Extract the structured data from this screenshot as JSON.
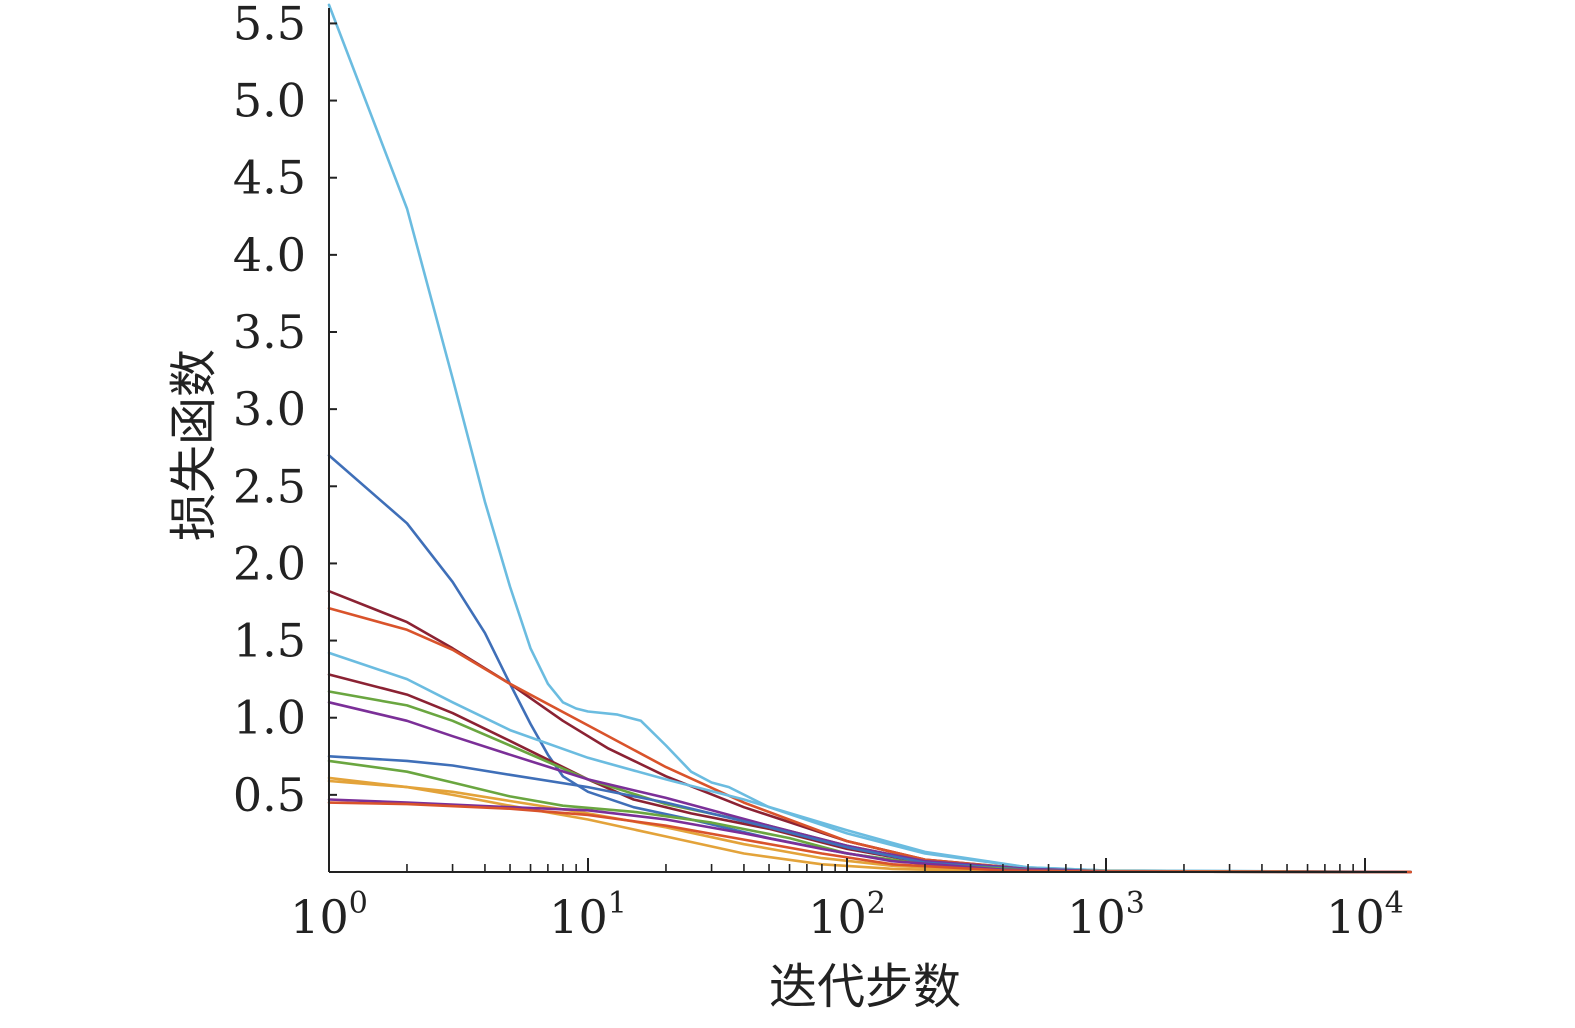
{
  "chart_data": {
    "type": "line",
    "title": "",
    "xlabel": "迭代步数",
    "ylabel": "损失函数",
    "x_scale": "log",
    "xlim": [
      1,
      15000
    ],
    "ylim": [
      0,
      5.6
    ],
    "grid": false,
    "legend": "none",
    "x_ticks": [
      {
        "value": 1,
        "base": "10",
        "exp": "0"
      },
      {
        "value": 10,
        "base": "10",
        "exp": "1"
      },
      {
        "value": 100,
        "base": "10",
        "exp": "2"
      },
      {
        "value": 1000,
        "base": "10",
        "exp": "3"
      },
      {
        "value": 10000,
        "base": "10",
        "exp": "4"
      }
    ],
    "y_ticks": [
      {
        "value": 0.5,
        "label": "0.5"
      },
      {
        "value": 1.0,
        "label": "1.0"
      },
      {
        "value": 1.5,
        "label": "1.5"
      },
      {
        "value": 2.0,
        "label": "2.0"
      },
      {
        "value": 2.5,
        "label": "2.5"
      },
      {
        "value": 3.0,
        "label": "3.0"
      },
      {
        "value": 3.5,
        "label": "3.5"
      },
      {
        "value": 4.0,
        "label": "4.0"
      },
      {
        "value": 4.5,
        "label": "4.5"
      },
      {
        "value": 5.0,
        "label": "5.0"
      },
      {
        "value": 5.5,
        "label": "5.5"
      }
    ],
    "series": [
      {
        "color": "#6bbce0",
        "points": [
          [
            1,
            5.62
          ],
          [
            2,
            4.3
          ],
          [
            3,
            3.2
          ],
          [
            4,
            2.4
          ],
          [
            5,
            1.85
          ],
          [
            6,
            1.45
          ],
          [
            7,
            1.22
          ],
          [
            8,
            1.1
          ],
          [
            9,
            1.06
          ],
          [
            10,
            1.04
          ],
          [
            13,
            1.02
          ],
          [
            16,
            0.98
          ],
          [
            20,
            0.82
          ],
          [
            25,
            0.65
          ],
          [
            30,
            0.58
          ],
          [
            35,
            0.55
          ],
          [
            50,
            0.42
          ],
          [
            100,
            0.25
          ],
          [
            200,
            0.12
          ],
          [
            500,
            0.03
          ],
          [
            1000,
            0.01
          ],
          [
            15000,
            0.0
          ]
        ]
      },
      {
        "color": "#3f6fb8",
        "points": [
          [
            1,
            2.7
          ],
          [
            2,
            2.26
          ],
          [
            3,
            1.88
          ],
          [
            4,
            1.55
          ],
          [
            5,
            1.22
          ],
          [
            6,
            0.96
          ],
          [
            7,
            0.76
          ],
          [
            8,
            0.62
          ],
          [
            10,
            0.52
          ],
          [
            15,
            0.42
          ],
          [
            25,
            0.34
          ],
          [
            50,
            0.22
          ],
          [
            100,
            0.12
          ],
          [
            200,
            0.05
          ],
          [
            400,
            0.015
          ],
          [
            1000,
            0.003
          ],
          [
            15000,
            0.0
          ]
        ]
      },
      {
        "color": "#8b2233",
        "points": [
          [
            1,
            1.82
          ],
          [
            2,
            1.62
          ],
          [
            3,
            1.45
          ],
          [
            5,
            1.22
          ],
          [
            8,
            0.98
          ],
          [
            12,
            0.8
          ],
          [
            20,
            0.62
          ],
          [
            40,
            0.42
          ],
          [
            100,
            0.2
          ],
          [
            200,
            0.08
          ],
          [
            500,
            0.02
          ],
          [
            1000,
            0.005
          ],
          [
            15000,
            0.0
          ]
        ]
      },
      {
        "color": "#d9532b",
        "points": [
          [
            1,
            1.71
          ],
          [
            2,
            1.57
          ],
          [
            3,
            1.44
          ],
          [
            5,
            1.22
          ],
          [
            10,
            0.95
          ],
          [
            20,
            0.68
          ],
          [
            40,
            0.45
          ],
          [
            100,
            0.2
          ],
          [
            200,
            0.08
          ],
          [
            500,
            0.02
          ],
          [
            1000,
            0.005
          ],
          [
            15000,
            0.0
          ]
        ]
      },
      {
        "color": "#6bbce0",
        "points": [
          [
            1,
            1.42
          ],
          [
            2,
            1.25
          ],
          [
            3,
            1.1
          ],
          [
            5,
            0.92
          ],
          [
            10,
            0.74
          ],
          [
            20,
            0.6
          ],
          [
            40,
            0.47
          ],
          [
            100,
            0.27
          ],
          [
            200,
            0.13
          ],
          [
            500,
            0.03
          ],
          [
            1000,
            0.01
          ],
          [
            15000,
            0.0
          ]
        ]
      },
      {
        "color": "#8b2233",
        "points": [
          [
            1,
            1.28
          ],
          [
            2,
            1.15
          ],
          [
            3,
            1.03
          ],
          [
            5,
            0.85
          ],
          [
            10,
            0.6
          ],
          [
            15,
            0.47
          ],
          [
            25,
            0.38
          ],
          [
            50,
            0.28
          ],
          [
            100,
            0.15
          ],
          [
            200,
            0.06
          ],
          [
            500,
            0.015
          ],
          [
            1000,
            0.004
          ],
          [
            15000,
            0.0
          ]
        ]
      },
      {
        "color": "#6aa640",
        "points": [
          [
            1,
            1.17
          ],
          [
            2,
            1.08
          ],
          [
            3,
            0.98
          ],
          [
            5,
            0.82
          ],
          [
            10,
            0.6
          ],
          [
            20,
            0.44
          ],
          [
            50,
            0.3
          ],
          [
            100,
            0.17
          ],
          [
            200,
            0.07
          ],
          [
            500,
            0.02
          ],
          [
            1000,
            0.005
          ],
          [
            15000,
            0.0
          ]
        ]
      },
      {
        "color": "#7b2f98",
        "points": [
          [
            1,
            1.1
          ],
          [
            2,
            0.98
          ],
          [
            3,
            0.88
          ],
          [
            5,
            0.76
          ],
          [
            10,
            0.6
          ],
          [
            20,
            0.48
          ],
          [
            50,
            0.3
          ],
          [
            100,
            0.17
          ],
          [
            200,
            0.07
          ],
          [
            500,
            0.02
          ],
          [
            1000,
            0.005
          ],
          [
            15000,
            0.0
          ]
        ]
      },
      {
        "color": "#3f6fb8",
        "points": [
          [
            1,
            0.75
          ],
          [
            2,
            0.72
          ],
          [
            3,
            0.69
          ],
          [
            5,
            0.63
          ],
          [
            10,
            0.55
          ],
          [
            20,
            0.45
          ],
          [
            50,
            0.29
          ],
          [
            100,
            0.16
          ],
          [
            200,
            0.06
          ],
          [
            500,
            0.015
          ],
          [
            1000,
            0.004
          ],
          [
            15000,
            0.0
          ]
        ]
      },
      {
        "color": "#6aa640",
        "points": [
          [
            1,
            0.72
          ],
          [
            2,
            0.65
          ],
          [
            3,
            0.58
          ],
          [
            5,
            0.49
          ],
          [
            8,
            0.43
          ],
          [
            15,
            0.39
          ],
          [
            30,
            0.32
          ],
          [
            60,
            0.22
          ],
          [
            100,
            0.12
          ],
          [
            200,
            0.05
          ],
          [
            500,
            0.012
          ],
          [
            1000,
            0.003
          ],
          [
            15000,
            0.0
          ]
        ]
      },
      {
        "color": "#e3a33a",
        "points": [
          [
            1,
            0.61
          ],
          [
            2,
            0.55
          ],
          [
            3,
            0.5
          ],
          [
            5,
            0.43
          ],
          [
            10,
            0.34
          ],
          [
            20,
            0.23
          ],
          [
            40,
            0.12
          ],
          [
            80,
            0.05
          ],
          [
            150,
            0.02
          ],
          [
            400,
            0.004
          ],
          [
            15000,
            0.0
          ]
        ]
      },
      {
        "color": "#e3a33a",
        "points": [
          [
            1,
            0.59
          ],
          [
            2,
            0.55
          ],
          [
            3,
            0.52
          ],
          [
            5,
            0.46
          ],
          [
            10,
            0.38
          ],
          [
            20,
            0.29
          ],
          [
            40,
            0.18
          ],
          [
            80,
            0.09
          ],
          [
            150,
            0.04
          ],
          [
            400,
            0.008
          ],
          [
            15000,
            0.0
          ]
        ]
      },
      {
        "color": "#7b2f98",
        "points": [
          [
            1,
            0.47
          ],
          [
            2,
            0.45
          ],
          [
            5,
            0.42
          ],
          [
            10,
            0.4
          ],
          [
            20,
            0.34
          ],
          [
            40,
            0.25
          ],
          [
            80,
            0.15
          ],
          [
            150,
            0.07
          ],
          [
            400,
            0.015
          ],
          [
            1000,
            0.003
          ],
          [
            15000,
            0.0
          ]
        ]
      },
      {
        "color": "#d9532b",
        "points": [
          [
            1,
            0.45
          ],
          [
            2,
            0.44
          ],
          [
            5,
            0.41
          ],
          [
            10,
            0.37
          ],
          [
            20,
            0.3
          ],
          [
            40,
            0.21
          ],
          [
            80,
            0.12
          ],
          [
            150,
            0.05
          ],
          [
            400,
            0.01
          ],
          [
            1000,
            0.002
          ],
          [
            15000,
            0.0
          ]
        ]
      }
    ]
  }
}
